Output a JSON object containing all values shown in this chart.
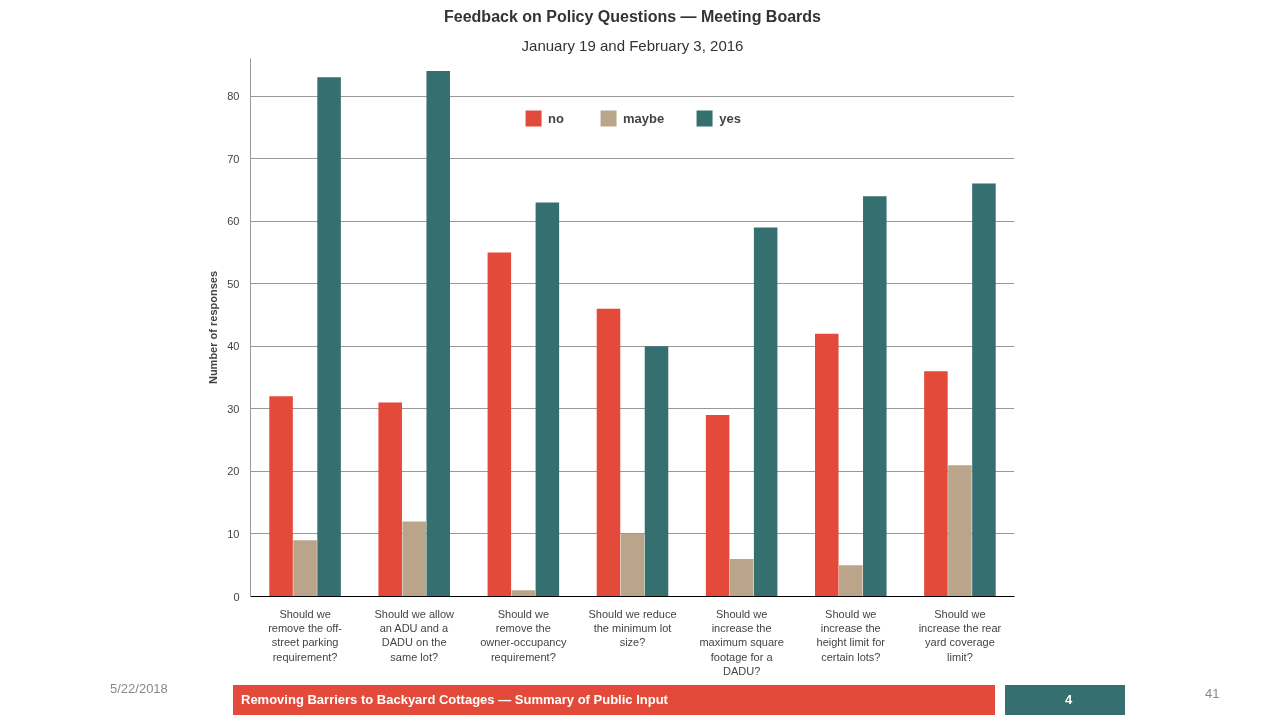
{
  "chart_data": {
    "type": "bar",
    "title": "Feedback on Policy Questions — Meeting Boards",
    "subtitle": "January 19 and February 3, 2016",
    "ylabel": "Number of responses",
    "categories": [
      "Should we\nremove the off-\nstreet parking\nrequirement?",
      "Should we allow\nan ADU and a\nDADU on the\nsame lot?",
      "Should we\nremove the\nowner-occupancy\nrequirement?",
      "Should we reduce\nthe minimum lot\nsize?",
      "Should we\nincrease the\nmaximum square\nfootage for a\nDADU?",
      "Should we\nincrease the\nheight limit for\ncertain lots?",
      "Should we\nincrease the rear\nyard coverage\nlimit?"
    ],
    "series": [
      {
        "name": "no",
        "color": "#e34a3a",
        "values": [
          32,
          31,
          55,
          46,
          29,
          42,
          36
        ]
      },
      {
        "name": "maybe",
        "color": "#bba58a",
        "values": [
          9,
          12,
          1,
          10,
          6,
          5,
          21
        ]
      },
      {
        "name": "yes",
        "color": "#356f70",
        "values": [
          83,
          84,
          63,
          40,
          59,
          64,
          66
        ]
      }
    ],
    "ylim": [
      0,
      86
    ],
    "yticks": [
      0,
      10,
      20,
      30,
      40,
      50,
      60,
      70,
      80
    ],
    "grid": "y",
    "legend": "top",
    "annotations": [
      "5/22/2018",
      "Removing Barriers to Backyard Cottages — Summary of Public Input",
      "4",
      "41"
    ]
  }
}
